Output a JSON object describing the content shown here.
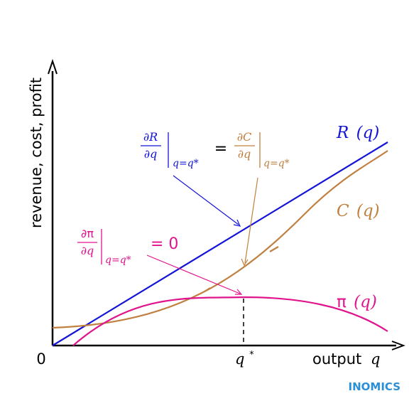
{
  "axes": {
    "y_label": "revenue, cost, profit",
    "x_label_text": "output",
    "x_label_var": "q",
    "origin_label": "0"
  },
  "curves": {
    "revenue": {
      "name": "R",
      "arg": "(q)",
      "color": "#1414d8"
    },
    "cost": {
      "name": "C",
      "arg": "(q)",
      "color": "#c08040"
    },
    "profit": {
      "name": "π",
      "arg": "(q)",
      "color": "#e0148c"
    }
  },
  "marker": {
    "label": "q",
    "superscript": "*"
  },
  "annotations": {
    "marginal_equality": {
      "left_num": "∂R",
      "left_den": "∂q",
      "right_num": "∂C",
      "right_den": "∂q",
      "equals": "=",
      "eval_at": "q=q*"
    },
    "profit_condition": {
      "num": "∂π",
      "den": "∂q",
      "eval_at": "q=q*",
      "rhs": "= 0"
    }
  },
  "brand": {
    "name": "INOMICS",
    "color": "#2a8fd6"
  }
}
